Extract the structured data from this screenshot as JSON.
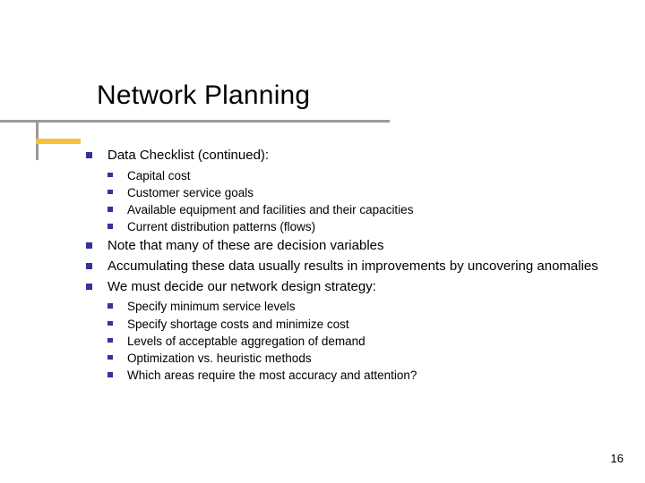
{
  "title": "Network Planning",
  "colors": {
    "bullet": "#333399",
    "underline_grey": "#9a9a9a",
    "underline_yellow": "#f5c23a",
    "background": "#ffffff",
    "text": "#000000"
  },
  "body": {
    "items": [
      {
        "text": "Data Checklist (continued):",
        "children": [
          "Capital cost",
          "Customer service goals",
          "Available equipment and facilities and their capacities",
          "Current distribution patterns (flows)"
        ]
      },
      {
        "text": "Note that many of these are decision variables"
      },
      {
        "text": "Accumulating these data usually results in improvements by uncovering anomalies"
      },
      {
        "text": "We must decide our network design strategy:",
        "children": [
          "Specify minimum service levels",
          "Specify shortage costs and minimize cost",
          "Levels of acceptable aggregation of demand",
          "Optimization vs. heuristic methods",
          "Which areas require the most accuracy and attention?"
        ]
      }
    ]
  },
  "page_number": "16"
}
